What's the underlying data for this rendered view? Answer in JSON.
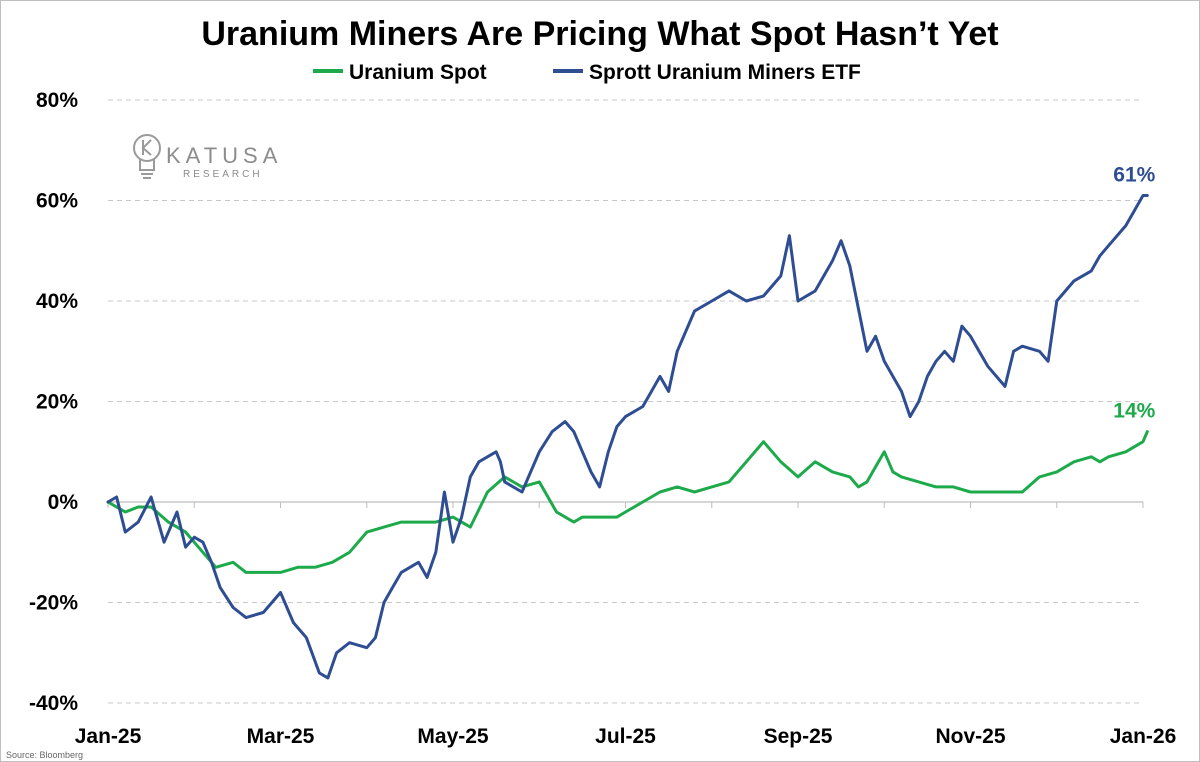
{
  "chart_data": {
    "type": "line",
    "title": "Uranium Miners Are Pricing What Spot Hasn’t Yet",
    "xlabel": "",
    "ylabel": "",
    "ylim": [
      -40,
      80
    ],
    "y_ticks": [
      -40,
      -20,
      0,
      20,
      40,
      60,
      80
    ],
    "y_tick_labels": [
      "-40%",
      "-20%",
      "0%",
      "20%",
      "40%",
      "60%",
      "80%"
    ],
    "x_range": [
      "2025-01-01",
      "2026-01-01"
    ],
    "x_tick_labels": [
      "Jan-25",
      "Mar-25",
      "May-25",
      "Jul-25",
      "Sep-25",
      "Nov-25",
      "Jan-26"
    ],
    "x_tick_positions": [
      0,
      2,
      4,
      6,
      8,
      10,
      12
    ],
    "x_unit": "months since Jan-25",
    "grid": true,
    "legend_position": "top-center",
    "series": [
      {
        "name": "Uranium Spot",
        "color": "#1daa4a",
        "end_label": "14%",
        "x": [
          0.0,
          0.2,
          0.35,
          0.5,
          0.7,
          0.9,
          1.1,
          1.25,
          1.45,
          1.6,
          1.85,
          2.0,
          2.2,
          2.4,
          2.6,
          2.8,
          3.0,
          3.2,
          3.4,
          3.6,
          3.8,
          4.0,
          4.2,
          4.4,
          4.6,
          4.8,
          5.0,
          5.2,
          5.4,
          5.5,
          5.6,
          5.8,
          5.9,
          6.0,
          6.2,
          6.4,
          6.6,
          6.8,
          7.0,
          7.2,
          7.4,
          7.6,
          7.8,
          8.0,
          8.2,
          8.4,
          8.6,
          8.7,
          8.8,
          8.9,
          9.0,
          9.1,
          9.2,
          9.4,
          9.6,
          9.7,
          9.8,
          10.0,
          10.2,
          10.4,
          10.6,
          10.8,
          11.0,
          11.2,
          11.4,
          11.5,
          11.6,
          11.8,
          12.0,
          12.05
        ],
        "values": [
          0,
          -2,
          -1,
          -1,
          -4,
          -6,
          -10,
          -13,
          -12,
          -14,
          -14,
          -14,
          -13,
          -13,
          -12,
          -10,
          -6,
          -5,
          -4,
          -4,
          -4,
          -3,
          -5,
          2,
          5,
          3,
          4,
          -2,
          -4,
          -3,
          -3,
          -3,
          -3,
          -2,
          0,
          2,
          3,
          2,
          3,
          4,
          8,
          12,
          8,
          5,
          8,
          6,
          5,
          3,
          4,
          7,
          10,
          6,
          5,
          4,
          3,
          3,
          3,
          2,
          2,
          2,
          2,
          5,
          6,
          8,
          9,
          8,
          9,
          10,
          12,
          14
        ]
      },
      {
        "name": "Sprott Uranium Miners ETF",
        "color": "#2e4d92",
        "end_label": "61%",
        "x": [
          0.0,
          0.1,
          0.2,
          0.35,
          0.5,
          0.65,
          0.8,
          0.9,
          1.0,
          1.1,
          1.2,
          1.3,
          1.45,
          1.6,
          1.8,
          2.0,
          2.15,
          2.3,
          2.45,
          2.55,
          2.65,
          2.8,
          3.0,
          3.1,
          3.2,
          3.3,
          3.4,
          3.6,
          3.7,
          3.8,
          3.9,
          4.0,
          4.1,
          4.2,
          4.3,
          4.5,
          4.55,
          4.6,
          4.8,
          5.0,
          5.15,
          5.3,
          5.4,
          5.5,
          5.6,
          5.7,
          5.8,
          5.9,
          6.0,
          6.2,
          6.4,
          6.5,
          6.6,
          6.8,
          7.0,
          7.2,
          7.4,
          7.6,
          7.8,
          7.9,
          8.0,
          8.2,
          8.4,
          8.5,
          8.6,
          8.8,
          8.9,
          9.0,
          9.2,
          9.3,
          9.4,
          9.5,
          9.6,
          9.7,
          9.8,
          9.9,
          10.0,
          10.1,
          10.2,
          10.4,
          10.5,
          10.6,
          10.8,
          10.9,
          11.0,
          11.2,
          11.4,
          11.5,
          11.6,
          11.8,
          11.9,
          12.0,
          12.05
        ],
        "values": [
          0,
          1,
          -6,
          -4,
          1,
          -8,
          -2,
          -9,
          -7,
          -8,
          -12,
          -17,
          -21,
          -23,
          -22,
          -18,
          -24,
          -27,
          -34,
          -35,
          -30,
          -28,
          -29,
          -27,
          -20,
          -17,
          -14,
          -12,
          -15,
          -10,
          2,
          -8,
          -3,
          5,
          8,
          10,
          8,
          4,
          2,
          10,
          14,
          16,
          14,
          10,
          6,
          3,
          10,
          15,
          17,
          19,
          25,
          22,
          30,
          38,
          40,
          42,
          40,
          41,
          45,
          53,
          40,
          42,
          48,
          52,
          47,
          30,
          33,
          28,
          22,
          17,
          20,
          25,
          28,
          30,
          28,
          35,
          33,
          30,
          27,
          23,
          30,
          31,
          30,
          28,
          40,
          44,
          46,
          49,
          51,
          55,
          58,
          61,
          61
        ]
      }
    ]
  },
  "source_note": "Source: Bloomberg",
  "logo": {
    "brand": "KATUSA",
    "sub": "RESEARCH",
    "color": "#8c8c8c"
  }
}
